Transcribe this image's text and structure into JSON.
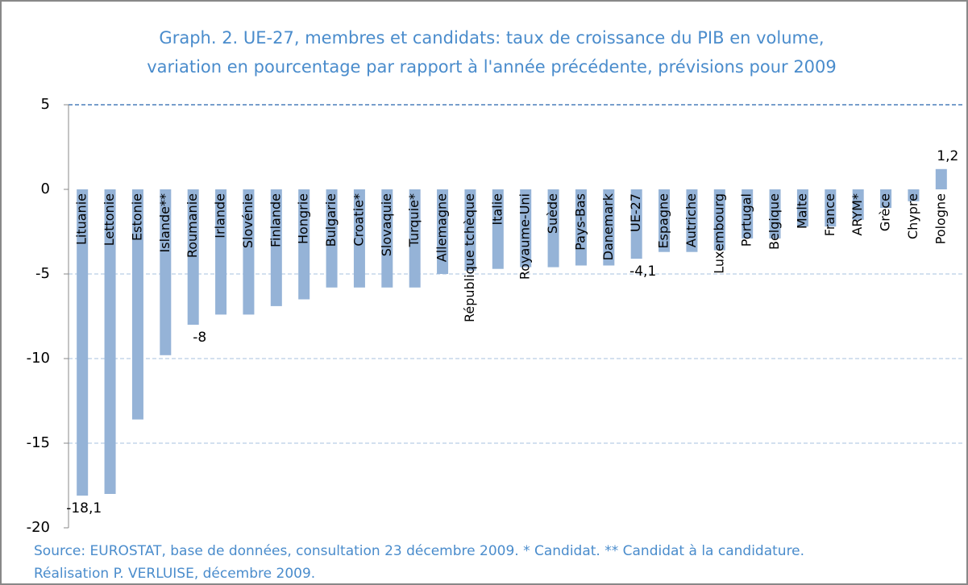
{
  "chart_data": {
    "type": "bar",
    "title": [
      "Graph. 2. UE-27, membres et candidats: taux de croissance du PIB en volume,",
      "variation en pourcentage par rapport à l'année précédente, prévisions pour 2009"
    ],
    "source": [
      "Source: EUROSTAT, base de données, consultation 23 décembre 2009. * Candidat. ** Candidat à la candidature.",
      "Réalisation P. VERLUISE, décembre 2009."
    ],
    "categories": [
      "Lituanie",
      "Lettonie",
      "Estonie",
      "Islande**",
      "Roumanie",
      "Irlande",
      "Slovénie",
      "Finlande",
      "Hongrie",
      "Bulgarie",
      "Croatie*",
      "Slovaquie",
      "Turquie*",
      "Allemagne",
      "République tchèque",
      "Italie",
      "Royaume-Uni",
      "Suède",
      "Pays-Bas",
      "Danemark",
      "UE-27",
      "Espagne",
      "Autriche",
      "Luxembourg",
      "Portugal",
      "Belgique",
      "Malte",
      "France",
      "ARYM*",
      "Grèce",
      "Chypre",
      "Pologne"
    ],
    "values": [
      -18.1,
      -18.0,
      -13.6,
      -9.8,
      -8,
      -7.4,
      -7.4,
      -6.9,
      -6.5,
      -5.8,
      -5.8,
      -5.8,
      -5.8,
      -5.0,
      -4.8,
      -4.7,
      -4.6,
      -4.6,
      -4.5,
      -4.5,
      -4.1,
      -3.7,
      -3.7,
      -3.6,
      -2.9,
      -2.9,
      -2.2,
      -2.2,
      -1.8,
      -1.1,
      -0.7,
      1.2
    ],
    "value_labels": [
      "-18,1",
      null,
      null,
      null,
      "-8",
      null,
      null,
      null,
      null,
      null,
      null,
      null,
      null,
      null,
      null,
      null,
      null,
      null,
      null,
      null,
      "-4,1",
      null,
      null,
      null,
      null,
      null,
      null,
      null,
      null,
      null,
      null,
      "1,2"
    ],
    "color": "#95b3d7",
    "ylim": [
      -20,
      5
    ],
    "yticks": [
      -20,
      -15,
      -10,
      -5,
      0,
      5
    ],
    "grid": true
  }
}
